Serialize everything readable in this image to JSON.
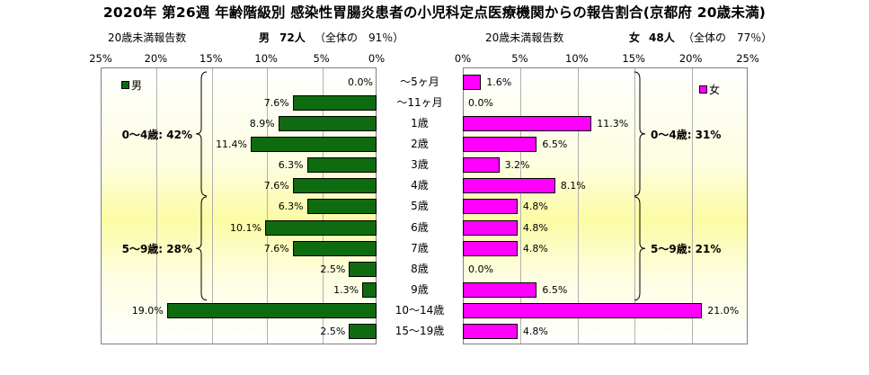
{
  "title": "2020年 第26週 年齢階級別 感染性胃腸炎患者の小児科定点医療機関からの報告割合(京都府 20歳未満)",
  "chart_data": {
    "type": "bar",
    "orientation": "horizontal-population-pyramid",
    "categories": [
      "～5ヶ月",
      "～11ヶ月",
      "1歳",
      "2歳",
      "3歳",
      "4歳",
      "5歳",
      "6歳",
      "7歳",
      "8歳",
      "9歳",
      "10～14歳",
      "15～19歳"
    ],
    "value_unit": "%",
    "axis_ticks": [
      "25%",
      "20%",
      "15%",
      "10%",
      "5%",
      "0%"
    ],
    "axis_ticks_right": [
      "0%",
      "5%",
      "10%",
      "15%",
      "20%",
      "25%"
    ],
    "xlim": [
      0,
      25
    ],
    "grid": true,
    "series": [
      {
        "name": "男",
        "side": "left",
        "color": "#0f6b0f",
        "header_label": "20歳未満報告数",
        "header_sex": "男",
        "header_count": "72人",
        "header_share": "（全体の　91％）",
        "legend_position": "top-left",
        "values": [
          0.0,
          7.6,
          8.9,
          11.4,
          6.3,
          7.6,
          6.3,
          10.1,
          7.6,
          2.5,
          1.3,
          19.0,
          2.5
        ],
        "value_labels": [
          "0.0%",
          "7.6%",
          "8.9%",
          "11.4%",
          "6.3%",
          "7.6%",
          "6.3%",
          "10.1%",
          "7.6%",
          "2.5%",
          "1.3%",
          "19.0%",
          "2.5%"
        ],
        "groups": [
          {
            "label": "0～4歳: 42%",
            "from": 0,
            "to": 5
          },
          {
            "label": "5～9歳: 28%",
            "from": 6,
            "to": 10
          }
        ]
      },
      {
        "name": "女",
        "side": "right",
        "color": "#ff00ff",
        "header_label": "20歳未満報告数",
        "header_sex": "女",
        "header_count": "48人",
        "header_share": "（全体の　77％）",
        "legend_position": "top-right",
        "values": [
          1.6,
          0.0,
          11.3,
          6.5,
          3.2,
          8.1,
          4.8,
          4.8,
          4.8,
          0.0,
          6.5,
          21.0,
          4.8
        ],
        "value_labels": [
          "1.6%",
          "0.0%",
          "11.3%",
          "6.5%",
          "3.2%",
          "8.1%",
          "4.8%",
          "4.8%",
          "4.8%",
          "0.0%",
          "6.5%",
          "21.0%",
          "4.8%"
        ],
        "groups": [
          {
            "label": "0～4歳: 31%",
            "from": 0,
            "to": 5
          },
          {
            "label": "5～9歳: 21%",
            "from": 6,
            "to": 10
          }
        ]
      }
    ]
  }
}
